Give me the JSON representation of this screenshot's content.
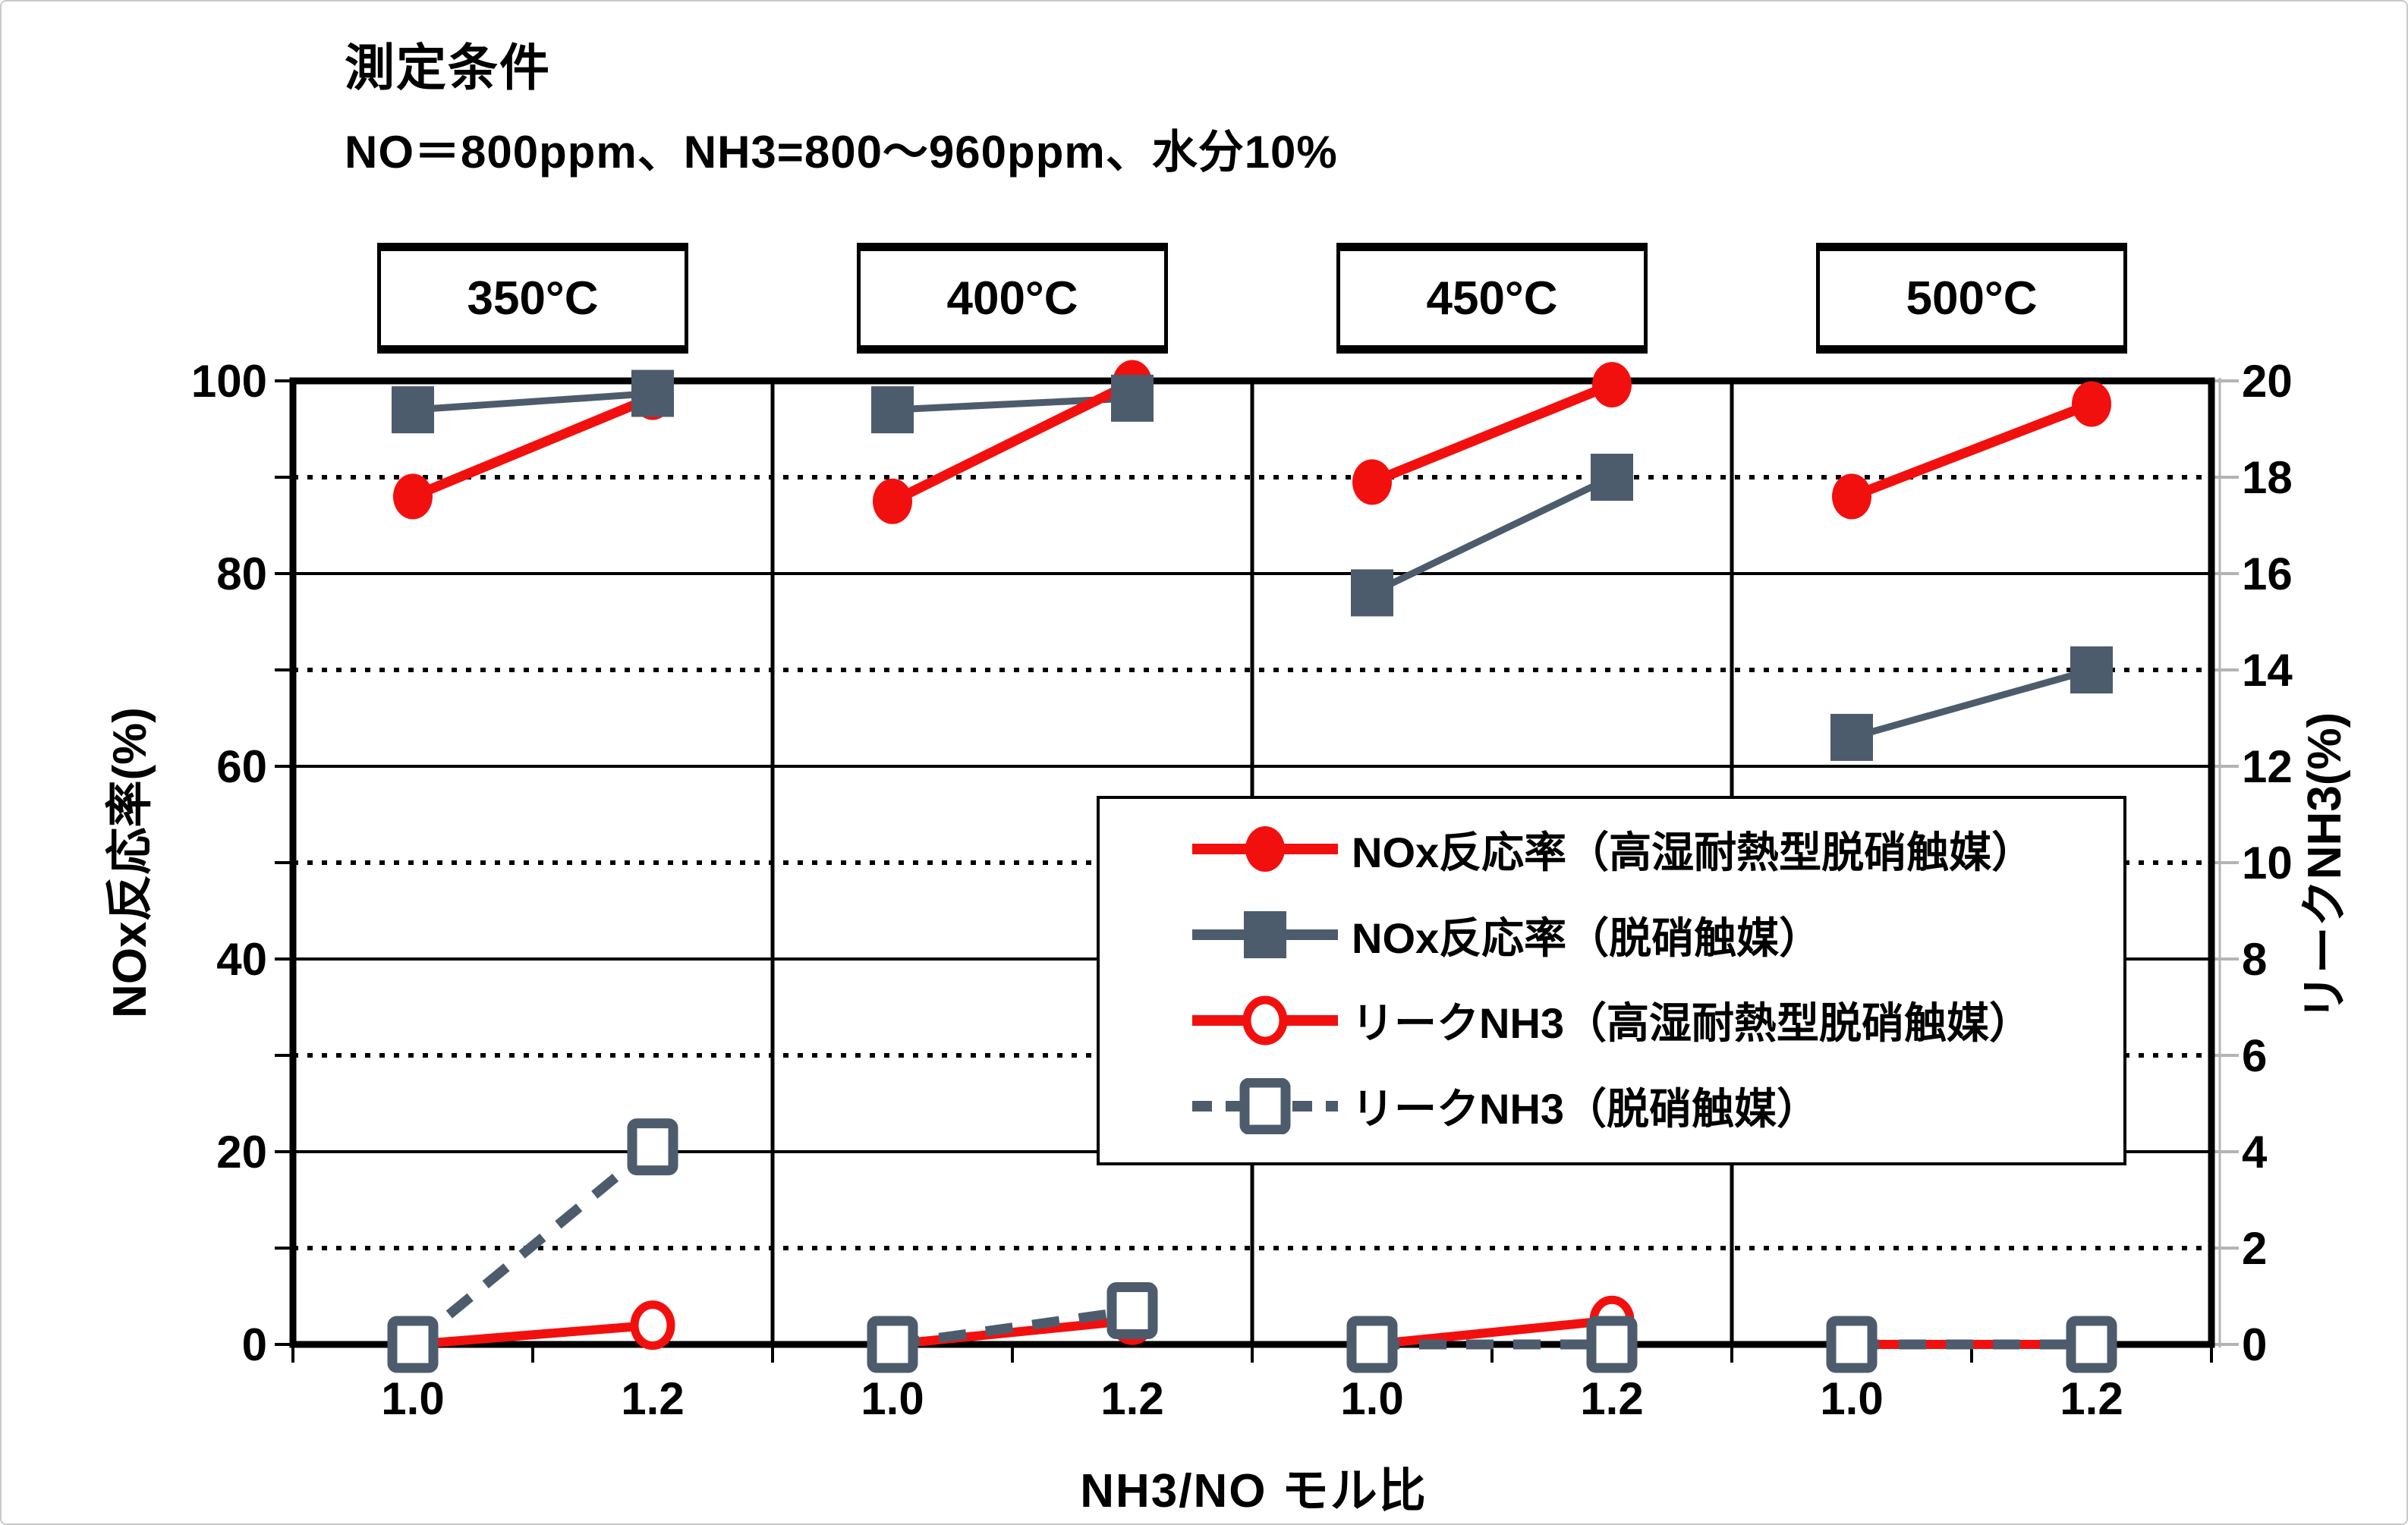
{
  "title": "測定条件",
  "subtitle": "NO＝800ppm、NH3=800～960ppm、水分10%",
  "colors": {
    "red": "#f2100f",
    "slate": "#4d5c6c",
    "grid": "#000000",
    "secondary_axis": "#b4b4b4",
    "background": "#ffffff"
  },
  "chart_data": {
    "type": "line",
    "panels": [
      "350°C",
      "400°C",
      "450°C",
      "500°C"
    ],
    "x": [
      1.0,
      1.2
    ],
    "xlabel": "NH3/NO モル比",
    "left_axis": {
      "label": "NOx反応率(%)",
      "range": [
        0,
        100
      ],
      "major_ticks": [
        0,
        20,
        40,
        60,
        80,
        100
      ],
      "minor_gridlines": [
        10,
        30,
        50,
        70,
        90
      ],
      "grid": "solid majors, dotted minors"
    },
    "right_axis": {
      "label": "リークNH3(%)",
      "range": [
        0,
        20
      ],
      "ticks": [
        0,
        2,
        4,
        6,
        8,
        10,
        12,
        14,
        16,
        18,
        20
      ]
    },
    "legend_position": "center-right overlay box",
    "series": [
      {
        "id": "nox-high",
        "name": "NOx反応率（高湿耐熱型脱硝触媒）",
        "axis": "left",
        "marker": "filled-circle",
        "color": "#f2100f",
        "line": "solid",
        "values": [
          [
            88,
            98.3
          ],
          [
            87.5,
            99.8
          ],
          [
            89.5,
            99.6
          ],
          [
            88,
            97.6
          ]
        ]
      },
      {
        "id": "nox-std",
        "name": "NOx反応率（脱硝触媒）",
        "axis": "left",
        "marker": "filled-square",
        "color": "#4d5c6c",
        "line": "solid",
        "values": [
          [
            97,
            98.7
          ],
          [
            97,
            98.2
          ],
          [
            78,
            90
          ],
          [
            63,
            70
          ]
        ]
      },
      {
        "id": "leak-high",
        "name": "リークNH3（高湿耐熱型脱硝触媒）",
        "axis": "right",
        "marker": "open-circle",
        "color": "#f2100f",
        "line": "solid",
        "values": [
          [
            0,
            0.4
          ],
          [
            0,
            0.5
          ],
          [
            0,
            0.5
          ],
          [
            0,
            0
          ]
        ]
      },
      {
        "id": "leak-std",
        "name": "リークNH3（脱硝触媒）",
        "axis": "right",
        "marker": "open-square",
        "color": "#4d5c6c",
        "line": "dashed",
        "values": [
          [
            0,
            4.1
          ],
          [
            0,
            0.7
          ],
          [
            0,
            0
          ],
          [
            0,
            0
          ]
        ]
      }
    ]
  }
}
